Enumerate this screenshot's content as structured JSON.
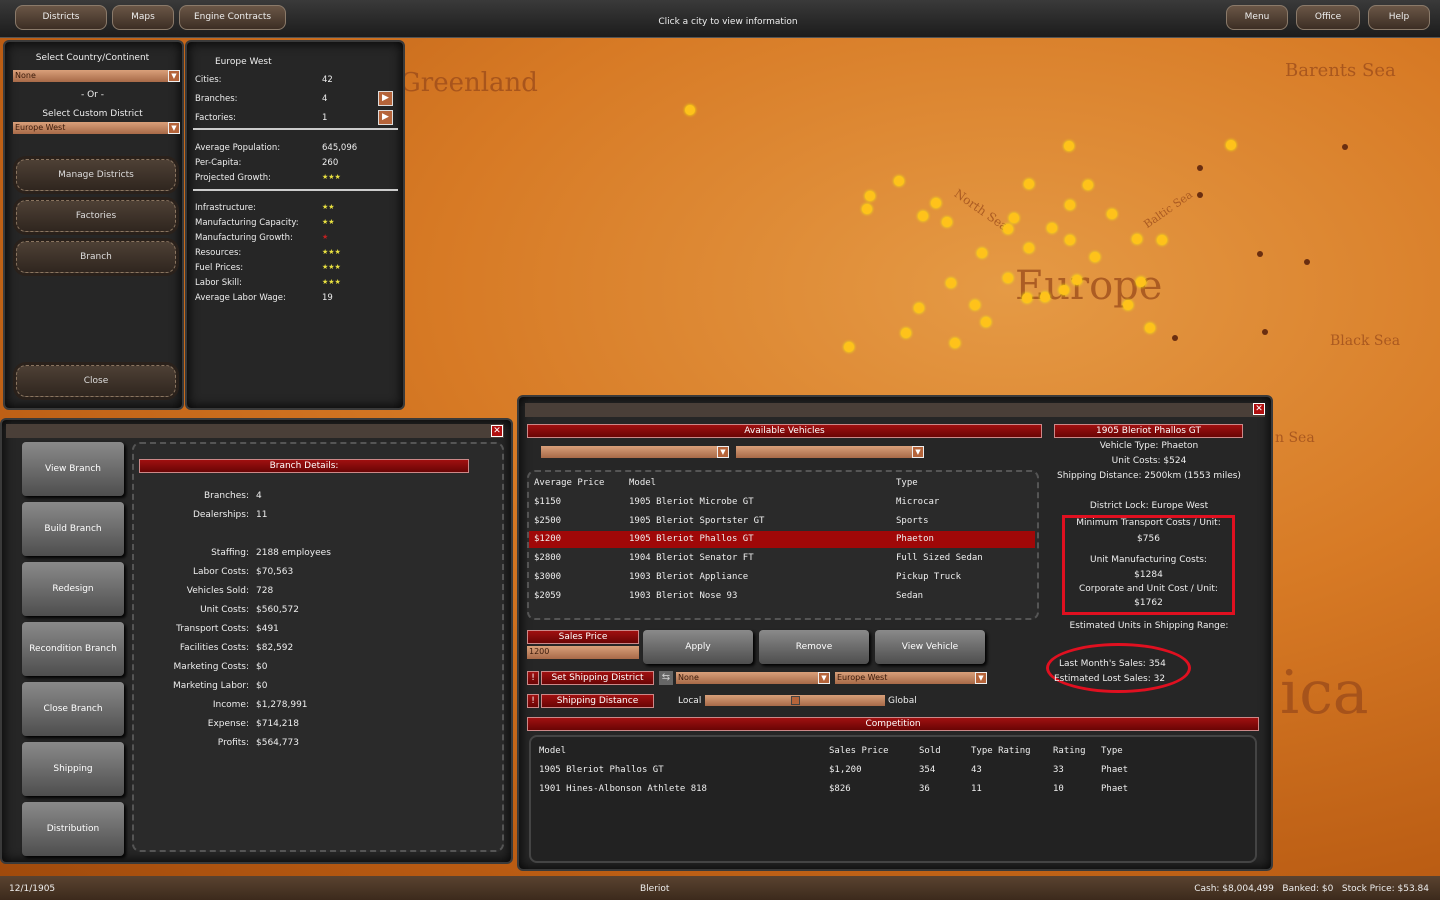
{
  "topbar": {
    "left_buttons": [
      "Districts",
      "Maps",
      "Engine Contracts"
    ],
    "hint": "Click a city to view information",
    "right_buttons": [
      "Menu",
      "Office",
      "Help"
    ]
  },
  "map": {
    "labels": [
      "Greenland",
      "Barents Sea",
      "North Sea",
      "Baltic Sea",
      "Europe",
      "Black Sea",
      "n Sea",
      "ica"
    ]
  },
  "district_select": {
    "country_label": "Select Country/Continent",
    "country_value": "None",
    "or_label": "- Or -",
    "custom_label": "Select Custom District",
    "custom_value": "Europe West",
    "buttons": [
      "Manage Districts",
      "Factories",
      "Branch"
    ],
    "close": "Close"
  },
  "district_stats": {
    "title": "Europe West",
    "top": [
      {
        "label": "Cities:",
        "value": "42"
      },
      {
        "label": "Branches:",
        "value": "4"
      },
      {
        "label": "Factories:",
        "value": "1"
      }
    ],
    "mid": [
      {
        "label": "Average Population:",
        "value": "645,096"
      },
      {
        "label": "Per-Capita:",
        "value": "260"
      },
      {
        "label": "Projected Growth:",
        "value": "★★★",
        "rating": 3
      }
    ],
    "bottom": [
      {
        "label": "Infrastructure:",
        "value": "★★",
        "rating": 2
      },
      {
        "label": "Manufacturing Capacity:",
        "value": "★★",
        "rating": 2
      },
      {
        "label": "Manufacturing Growth:",
        "value": "★",
        "rating": 1,
        "color": "#c02020"
      },
      {
        "label": "Resources:",
        "value": "★★★",
        "rating": 3
      },
      {
        "label": "Fuel Prices:",
        "value": "★★★",
        "rating": 3
      },
      {
        "label": "Labor Skill:",
        "value": "★★★",
        "rating": 3
      },
      {
        "label": "Average Labor Wage:",
        "value": "19"
      }
    ]
  },
  "branch": {
    "menu": [
      "View Branch",
      "Build Branch",
      "Redesign",
      "Recondition Branch",
      "Close Branch",
      "Shipping",
      "Distribution"
    ],
    "details_title": "Branch Details:",
    "details": [
      {
        "label": "Branches:",
        "value": "4"
      },
      {
        "label": "Dealerships:",
        "value": "11"
      },
      {
        "label": "Staffing:",
        "value": "2188 employees"
      },
      {
        "label": "Labor Costs:",
        "value": "$70,563"
      },
      {
        "label": "Vehicles Sold:",
        "value": "728"
      },
      {
        "label": "Unit Costs:",
        "value": "$560,572"
      },
      {
        "label": "Transport Costs:",
        "value": "$491"
      },
      {
        "label": "Facilities Costs:",
        "value": "$82,592"
      },
      {
        "label": "Marketing Costs:",
        "value": "$0"
      },
      {
        "label": "Marketing Labor:",
        "value": "$0"
      },
      {
        "label": "Income:",
        "value": "$1,278,991"
      },
      {
        "label": "Expense:",
        "value": "$714,218"
      },
      {
        "label": "Profits:",
        "value": "$564,773"
      }
    ]
  },
  "vehicles": {
    "title": "Available Vehicles",
    "columns": [
      "Average Price",
      "Model",
      "Type"
    ],
    "rows": [
      [
        "$1150",
        "1905 Bleriot Microbe GT",
        "Microcar"
      ],
      [
        "$2500",
        "1905 Bleriot Sportster GT",
        "Sports"
      ],
      [
        "$1200",
        "1905 Bleriot Phallos GT",
        "Phaeton"
      ],
      [
        "$2800",
        "1904 Bleriot Senator FT",
        "Full Sized Sedan"
      ],
      [
        "$3000",
        "1903 Bleriot Appliance",
        "Pickup Truck"
      ],
      [
        "$2059",
        "1903 Bleriot Nose 93",
        "Sedan"
      ]
    ],
    "selected_index": 2,
    "sales_price_label": "Sales Price",
    "sales_price_value": "1200",
    "buttons": [
      "Apply",
      "Remove",
      "View Vehicle"
    ],
    "set_shipping_label": "Set Shipping District",
    "ship_from": "None",
    "ship_to": "Europe West",
    "shipping_distance_label": "Shipping Distance",
    "slider_left": "Local",
    "slider_right": "Global",
    "slider_level": 0.5
  },
  "info": {
    "title": "1905 Bleriot Phallos GT",
    "type": "Vehicle Type: Phaeton",
    "unit_costs": "Unit Costs: $524",
    "shipping": "Shipping Distance: 2500km (1553 miles)",
    "district_lock": "District Lock: Europe West",
    "min_transport_label": "Minimum Transport Costs / Unit:",
    "min_transport": "$756",
    "mfg_label": "Unit Manufacturing Costs:",
    "mfg": "$1284",
    "corp_label": "Corporate and Unit Cost / Unit:",
    "corp": "$1762",
    "est_units": "Estimated Units in Shipping Range:",
    "last_sales": "Last Month's Sales:  354",
    "lost_sales": "Estimated Lost Sales: 32",
    "highlight_color": "#e01020"
  },
  "competition": {
    "title": "Competition",
    "columns": [
      "Model",
      "Sales Price",
      "Sold",
      "Type Rating",
      "Rating",
      "Type"
    ],
    "rows": [
      [
        "1905 Bleriot Phallos GT",
        "$1,200",
        "354",
        "43",
        "33",
        "Phaet"
      ],
      [
        "1901 Hines-Albonson Athlete 818",
        "$826",
        "36",
        "11",
        "10",
        "Phaet"
      ]
    ]
  },
  "status": {
    "date": "12/1/1905",
    "company": "Bleriot",
    "finance": "Cash: $8,004,499   Banked: $0   Stock Price: $53.84"
  }
}
